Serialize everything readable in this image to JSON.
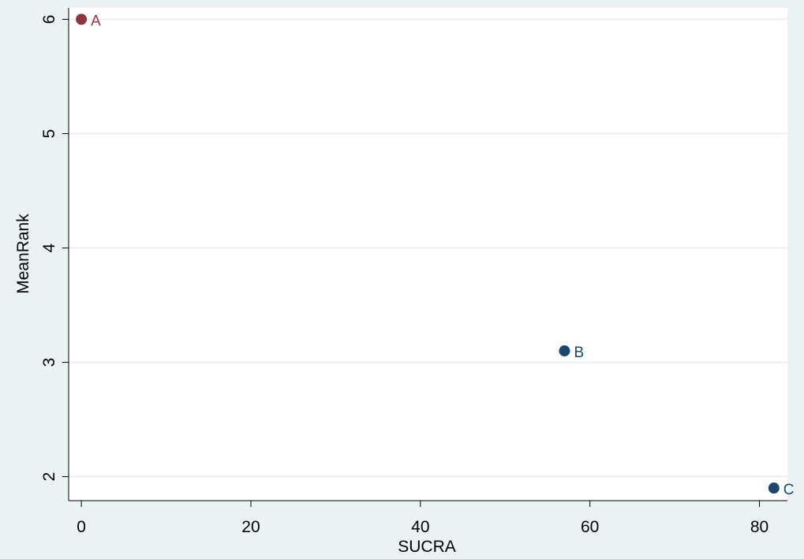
{
  "chart_data": {
    "type": "scatter",
    "x_label": "SUCRA",
    "y_label": "MeanRank",
    "labels": [
      "A",
      "B",
      "C"
    ],
    "x": [
      0,
      57,
      81.7
    ],
    "y": [
      6,
      3.1,
      1.9
    ],
    "colors": [
      "#90353b",
      "#1a476f",
      "#1a476f"
    ],
    "xlim": [
      -1.5,
      83.3
    ],
    "ylim": [
      1.79,
      6.1
    ],
    "xticks": [
      0,
      20,
      40,
      60,
      80
    ],
    "yticks": [
      2,
      3,
      4,
      5,
      6
    ],
    "grid": true
  }
}
